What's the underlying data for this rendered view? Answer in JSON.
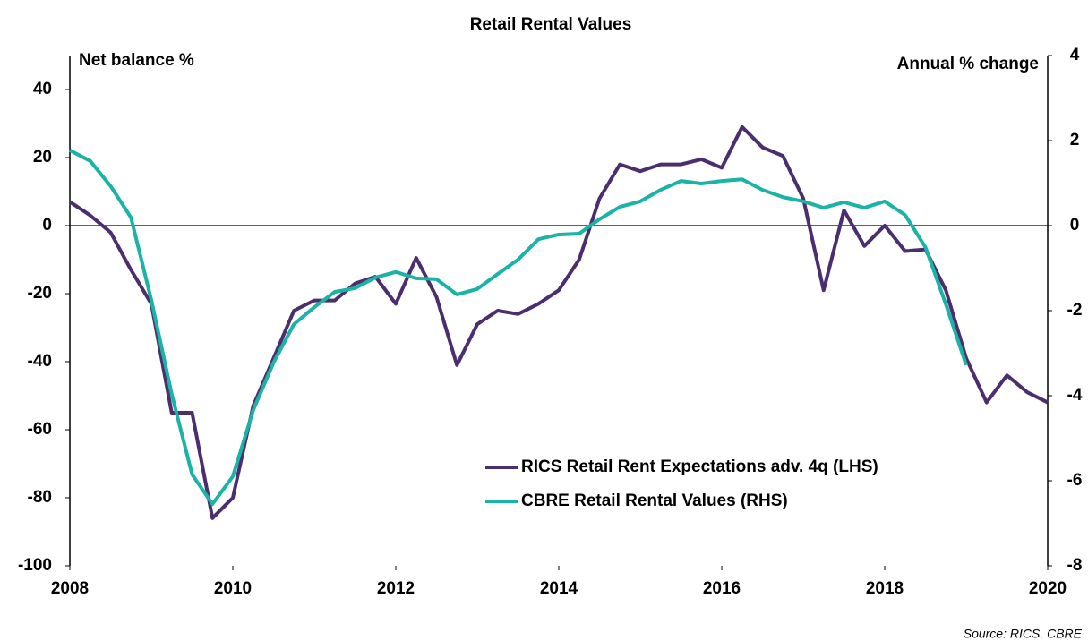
{
  "chart_data": {
    "type": "line",
    "title": "Retail Rental Values",
    "y_label": "Net balance %",
    "y2_label": "Annual % change",
    "source": "Source: RICS. CBRE",
    "x": [
      2008,
      2008.25,
      2008.5,
      2008.75,
      2009,
      2009.25,
      2009.5,
      2009.75,
      2010,
      2010.25,
      2010.5,
      2010.75,
      2011,
      2011.25,
      2011.5,
      2011.75,
      2012,
      2012.25,
      2012.5,
      2012.75,
      2013,
      2013.25,
      2013.5,
      2013.75,
      2014,
      2014.25,
      2014.5,
      2014.75,
      2015,
      2015.25,
      2015.5,
      2015.75,
      2016,
      2016.25,
      2016.5,
      2016.75,
      2017,
      2017.25,
      2017.5,
      2017.75,
      2018,
      2018.25,
      2018.5,
      2018.75,
      2019,
      2019.25,
      2019.5,
      2019.75,
      2020
    ],
    "series": [
      {
        "name": "RICS Retail Rent Expectations adv. 4q (LHS)",
        "color": "#4b2e6e",
        "axis": "y",
        "values": [
          7,
          3,
          -2,
          -13,
          -23,
          -55,
          -55,
          -86,
          -80,
          -53,
          -39,
          -25,
          -22,
          -22,
          -17,
          -15,
          -23,
          -9.5,
          -21,
          -41,
          -29,
          -25,
          -26,
          -23,
          -19,
          -10,
          8,
          18,
          16,
          18,
          18,
          19.5,
          17,
          29,
          23,
          20.5,
          8,
          -19,
          4.5,
          -6,
          0,
          -7.5,
          -7,
          -19,
          -39,
          -52,
          -44,
          -49,
          -52
        ]
      },
      {
        "name": "CBRE Retail Rental Values  (RHS)",
        "color": "#1ab3a6",
        "axis": "y2",
        "values": [
          1.77,
          1.52,
          0.93,
          0.19,
          -1.75,
          -3.96,
          -5.85,
          -6.55,
          -5.9,
          -4.34,
          -3.22,
          -2.32,
          -1.92,
          -1.56,
          -1.47,
          -1.22,
          -1.09,
          -1.24,
          -1.26,
          -1.62,
          -1.49,
          -1.14,
          -0.8,
          -0.32,
          -0.21,
          -0.19,
          0.15,
          0.44,
          0.57,
          0.84,
          1.05,
          0.99,
          1.05,
          1.09,
          0.84,
          0.67,
          0.57,
          0.42,
          0.55,
          0.42,
          0.57,
          0.25,
          -0.51,
          -1.85,
          -3.28,
          null,
          null,
          null,
          null
        ]
      }
    ],
    "xlim": [
      2008,
      2020
    ],
    "xticks": [
      2008,
      2010,
      2012,
      2014,
      2016,
      2018,
      2020
    ],
    "ylim": [
      -100,
      50
    ],
    "yticks": [
      -100,
      -80,
      -60,
      -40,
      -20,
      0,
      20,
      40
    ],
    "y2lim": [
      -8,
      4
    ],
    "y2ticks": [
      -8,
      -6,
      -4,
      -2,
      0,
      2,
      4
    ]
  }
}
